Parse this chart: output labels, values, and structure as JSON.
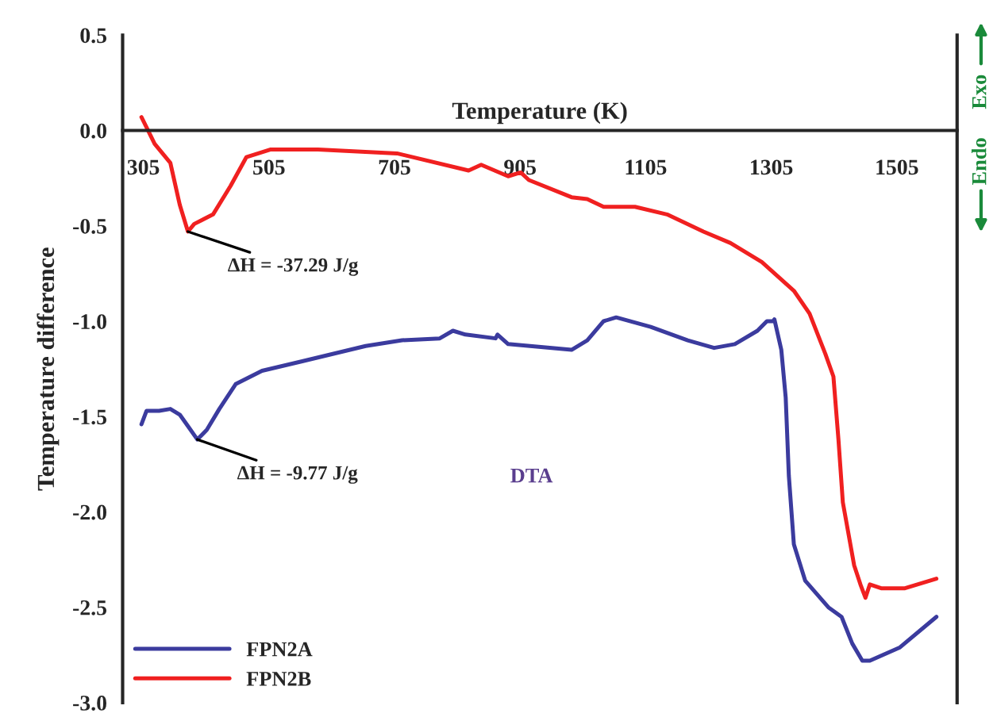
{
  "chart_data": {
    "type": "line",
    "xlabel": "Temperature (K)",
    "ylabel": "Temperature difference",
    "xlim": [
      272,
      1601
    ],
    "ylim": [
      -3.0,
      0.5
    ],
    "xticks": [
      305,
      505,
      705,
      905,
      1105,
      1305,
      1505
    ],
    "yticks": [
      {
        "value": 0.5,
        "label": "0.5"
      },
      {
        "value": 0,
        "label": "0.0"
      },
      {
        "value": -0.5,
        "label": "-0.5"
      },
      {
        "value": -1.0,
        "label": "-1.0"
      },
      {
        "value": -1.5,
        "label": "-1.5"
      },
      {
        "value": -2.0,
        "label": "-2.0"
      },
      {
        "value": -2.5,
        "label": "-2.5"
      },
      {
        "value": -3.0,
        "label": "-3.0"
      }
    ],
    "grid": false,
    "legend": "bottom left",
    "marker": "none",
    "line_style": "solid",
    "series": [
      {
        "name": "FPN2A",
        "color": "#3b3b9e",
        "x": [
          302,
          310,
          330,
          348,
          363,
          376,
          391,
          406,
          426,
          452,
          494,
          558,
          659,
          717,
          777,
          798,
          818,
          866,
          869,
          886,
          987,
          1012,
          1038,
          1058,
          1113,
          1172,
          1214,
          1247,
          1283,
          1298,
          1308,
          1310,
          1321,
          1328,
          1333,
          1341,
          1359,
          1396,
          1417,
          1434,
          1450,
          1462,
          1510,
          1568
        ],
        "values": [
          -1.54,
          -1.47,
          -1.47,
          -1.46,
          -1.49,
          -1.55,
          -1.62,
          -1.57,
          -1.46,
          -1.33,
          -1.26,
          -1.21,
          -1.13,
          -1.1,
          -1.09,
          -1.05,
          -1.07,
          -1.09,
          -1.07,
          -1.12,
          -1.15,
          -1.1,
          -1.0,
          -0.98,
          -1.03,
          -1.1,
          -1.14,
          -1.12,
          -1.05,
          -1.0,
          -1.0,
          -0.99,
          -1.15,
          -1.4,
          -1.81,
          -2.17,
          -2.36,
          -2.5,
          -2.55,
          -2.69,
          -2.78,
          -2.78,
          -2.71,
          -2.55
        ]
      },
      {
        "name": "FPN2B",
        "color": "#f02020",
        "x": [
          302,
          323,
          348,
          363,
          376,
          386,
          416,
          444,
          469,
          507,
          583,
          709,
          823,
          843,
          886,
          906,
          919,
          987,
          1012,
          1038,
          1088,
          1139,
          1197,
          1240,
          1290,
          1341,
          1366,
          1391,
          1404,
          1412,
          1419,
          1437,
          1447,
          1455,
          1462,
          1480,
          1518,
          1568
        ],
        "values": [
          0.07,
          -0.07,
          -0.17,
          -0.39,
          -0.53,
          -0.49,
          -0.44,
          -0.29,
          -0.14,
          -0.1,
          -0.1,
          -0.12,
          -0.21,
          -0.18,
          -0.24,
          -0.22,
          -0.26,
          -0.35,
          -0.36,
          -0.4,
          -0.4,
          -0.44,
          -0.53,
          -0.59,
          -0.69,
          -0.84,
          -0.96,
          -1.17,
          -1.29,
          -1.62,
          -1.95,
          -2.28,
          -2.38,
          -2.45,
          -2.38,
          -2.4,
          -2.4,
          -2.35
        ]
      }
    ],
    "annotations": [
      {
        "text": "ΔH = -37.29 J/g",
        "x": 376,
        "y": -0.53
      },
      {
        "text": "ΔH = -9.77 J/g",
        "x": 391,
        "y": -1.62
      },
      "DTA",
      "Exo",
      "Endo"
    ]
  }
}
